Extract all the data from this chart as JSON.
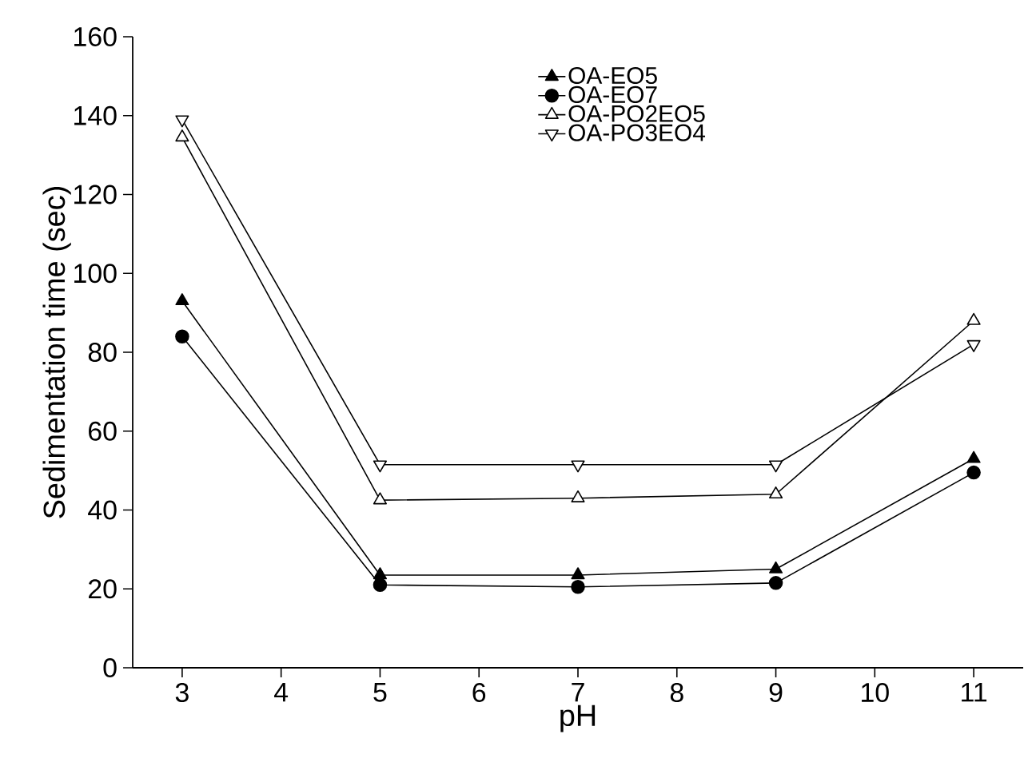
{
  "chart_data": {
    "type": "line",
    "xlabel": "pH",
    "ylabel": "Sedimentation time (sec)",
    "x": [
      3,
      5,
      7,
      9,
      11
    ],
    "series": [
      {
        "name": "OA-EO5",
        "color": "#000000",
        "marker": "triangle",
        "values": [
          93,
          23.5,
          23.5,
          25,
          53
        ]
      },
      {
        "name": "OA-EO7",
        "color": "#000000",
        "marker": "circle",
        "values": [
          84,
          21,
          20.5,
          21.5,
          49.5
        ]
      },
      {
        "name": "OA-PO2EO5",
        "color": "#000000",
        "marker": "triangle-open",
        "values": [
          134.5,
          42.5,
          43,
          44,
          88
        ]
      },
      {
        "name": "OA-PO3EO4",
        "color": "#000000",
        "marker": "triangle-down-open",
        "values": [
          139,
          51.5,
          51.5,
          51.5,
          82
        ]
      }
    ],
    "xlim": [
      2.5,
      11.5
    ],
    "xticks": [
      3,
      4,
      5,
      6,
      7,
      8,
      9,
      10,
      11
    ],
    "ylim": [
      0,
      160
    ],
    "yticks": [
      0,
      20,
      40,
      60,
      80,
      100,
      120,
      140,
      160
    ],
    "grid": false,
    "legend": "top",
    "line_style": "solid"
  }
}
